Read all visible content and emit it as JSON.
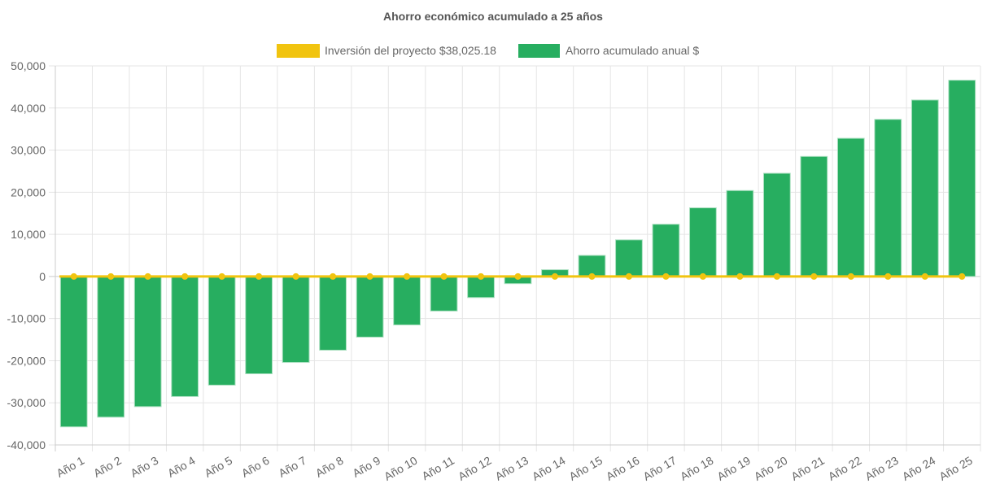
{
  "chart_data": {
    "type": "bar",
    "title": "Ahorro económico acumulado a 25 años",
    "xlabel": "",
    "ylabel": "",
    "ylim": [
      -40000,
      50000
    ],
    "yticks": [
      50000,
      40000,
      30000,
      20000,
      10000,
      0,
      -10000,
      -20000,
      -30000,
      -40000
    ],
    "ytick_labels": [
      "50,000",
      "40,000",
      "30,000",
      "20,000",
      "10,000",
      "0",
      "-10,000",
      "-20,000",
      "-30,000",
      "-40,000"
    ],
    "grid": true,
    "legend_position": "top",
    "categories": [
      "Año 1",
      "Año 2",
      "Año 3",
      "Año 4",
      "Año 5",
      "Año 6",
      "Año 7",
      "Año 8",
      "Año 9",
      "Año 10",
      "Año 11",
      "Año 12",
      "Año 13",
      "Año 14",
      "Año 15",
      "Año 16",
      "Año 17",
      "Año 18",
      "Año 19",
      "Año 20",
      "Año 21",
      "Año 22",
      "Año 23",
      "Año 24",
      "Año 25"
    ],
    "series": [
      {
        "name": "Inversión del proyecto $38,025.18",
        "type": "line",
        "color": "#f1c40f",
        "values": [
          0,
          0,
          0,
          0,
          0,
          0,
          0,
          0,
          0,
          0,
          0,
          0,
          0,
          0,
          0,
          0,
          0,
          0,
          0,
          0,
          0,
          0,
          0,
          0,
          0
        ]
      },
      {
        "name": "Ahorro acumulado anual $",
        "type": "bar",
        "color": "#27ae60",
        "values": [
          -35700,
          -33400,
          -30900,
          -28500,
          -25800,
          -23100,
          -20400,
          -17500,
          -14400,
          -11500,
          -8200,
          -5000,
          -1700,
          1600,
          5000,
          8700,
          12400,
          16300,
          20400,
          24500,
          28500,
          32800,
          37300,
          41900,
          46600
        ]
      }
    ]
  }
}
